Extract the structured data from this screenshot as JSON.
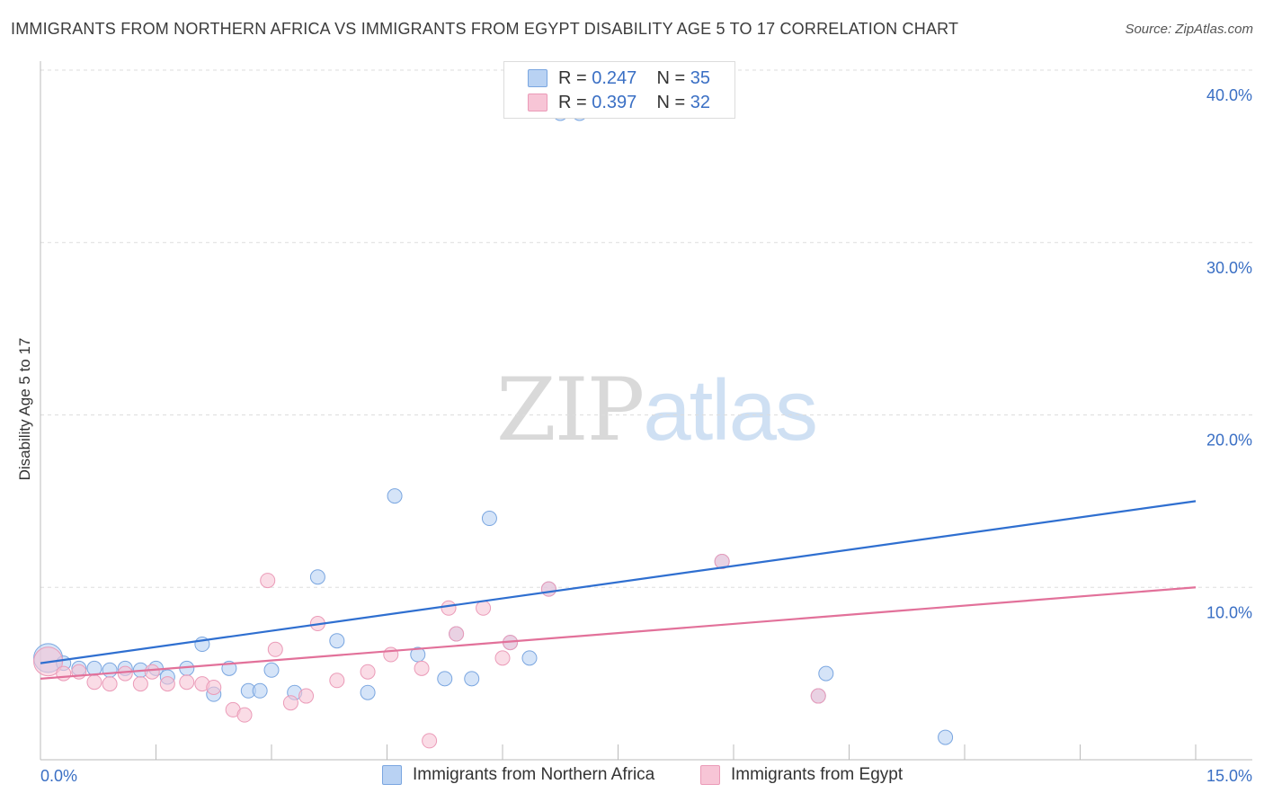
{
  "title": "IMMIGRANTS FROM NORTHERN AFRICA VS IMMIGRANTS FROM EGYPT DISABILITY AGE 5 TO 17 CORRELATION CHART",
  "source": "Source: ZipAtlas.com",
  "watermark": {
    "zip": "ZIP",
    "atlas": "atlas"
  },
  "legend": {
    "r_label": "R =",
    "n_label": "N =",
    "rows": [
      {
        "r": "0.247",
        "n": "35"
      },
      {
        "r": "0.397",
        "n": "32"
      }
    ]
  },
  "colors": {
    "blue_fill": "#b9d2f3",
    "blue_stroke": "#7aa6e0",
    "blue_line": "#2f6fd0",
    "pink_fill": "#f7c5d6",
    "pink_stroke": "#eb9bb8",
    "pink_line": "#e2719a",
    "grid": "#dddddd",
    "tick_text": "#3a6fc4"
  },
  "chart_data": {
    "type": "scatter",
    "title": "IMMIGRANTS FROM NORTHERN AFRICA VS IMMIGRANTS FROM EGYPT DISABILITY AGE 5 TO 17 CORRELATION CHART",
    "xlabel": "",
    "ylabel": "Disability Age 5 to 17",
    "xlim": [
      0,
      15
    ],
    "ylim": [
      0,
      40
    ],
    "x_tick_labels": [
      "0.0%",
      "15.0%"
    ],
    "y_ticks": [
      10,
      20,
      30,
      40
    ],
    "y_tick_labels": [
      "10.0%",
      "20.0%",
      "30.0%",
      "40.0%"
    ],
    "grid": true,
    "legend_position": "top-center",
    "series": [
      {
        "name": "Immigrants from Northern Africa",
        "color": "#b9d2f3",
        "r": 0.247,
        "n": 35,
        "trend": {
          "x": [
            0,
            15
          ],
          "y": [
            5.6,
            15.0
          ]
        },
        "points": [
          {
            "x": 0.1,
            "y": 5.9
          },
          {
            "x": 0.3,
            "y": 5.6
          },
          {
            "x": 0.5,
            "y": 5.3
          },
          {
            "x": 0.7,
            "y": 5.3
          },
          {
            "x": 0.9,
            "y": 5.2
          },
          {
            "x": 1.1,
            "y": 5.3
          },
          {
            "x": 1.3,
            "y": 5.2
          },
          {
            "x": 1.5,
            "y": 5.3
          },
          {
            "x": 1.65,
            "y": 4.8
          },
          {
            "x": 1.9,
            "y": 5.3
          },
          {
            "x": 2.1,
            "y": 6.7
          },
          {
            "x": 2.25,
            "y": 3.8
          },
          {
            "x": 2.45,
            "y": 5.3
          },
          {
            "x": 2.7,
            "y": 4.0
          },
          {
            "x": 2.85,
            "y": 4.0
          },
          {
            "x": 3.0,
            "y": 5.2
          },
          {
            "x": 3.3,
            "y": 3.9
          },
          {
            "x": 3.6,
            "y": 10.6
          },
          {
            "x": 3.85,
            "y": 6.9
          },
          {
            "x": 4.25,
            "y": 3.9
          },
          {
            "x": 4.6,
            "y": 15.3
          },
          {
            "x": 4.9,
            "y": 6.1
          },
          {
            "x": 5.25,
            "y": 4.7
          },
          {
            "x": 5.6,
            "y": 4.7
          },
          {
            "x": 5.83,
            "y": 14.0
          },
          {
            "x": 6.1,
            "y": 6.8
          },
          {
            "x": 6.35,
            "y": 5.9
          },
          {
            "x": 6.6,
            "y": 9.9
          },
          {
            "x": 6.75,
            "y": 37.5
          },
          {
            "x": 7.0,
            "y": 37.5
          },
          {
            "x": 8.85,
            "y": 11.5
          },
          {
            "x": 10.1,
            "y": 3.7
          },
          {
            "x": 10.2,
            "y": 5.0
          },
          {
            "x": 11.75,
            "y": 1.3
          },
          {
            "x": 5.4,
            "y": 7.3
          }
        ]
      },
      {
        "name": "Immigrants from Egypt",
        "color": "#f7c5d6",
        "r": 0.397,
        "n": 32,
        "trend": {
          "x": [
            0,
            15
          ],
          "y": [
            4.7,
            10.0
          ]
        },
        "points": [
          {
            "x": 0.1,
            "y": 5.7
          },
          {
            "x": 0.3,
            "y": 5.0
          },
          {
            "x": 0.5,
            "y": 5.1
          },
          {
            "x": 0.7,
            "y": 4.5
          },
          {
            "x": 0.9,
            "y": 4.4
          },
          {
            "x": 1.1,
            "y": 5.0
          },
          {
            "x": 1.3,
            "y": 4.4
          },
          {
            "x": 1.45,
            "y": 5.1
          },
          {
            "x": 1.65,
            "y": 4.4
          },
          {
            "x": 1.9,
            "y": 4.5
          },
          {
            "x": 2.1,
            "y": 4.4
          },
          {
            "x": 2.25,
            "y": 4.2
          },
          {
            "x": 2.5,
            "y": 2.9
          },
          {
            "x": 2.65,
            "y": 2.6
          },
          {
            "x": 2.95,
            "y": 10.4
          },
          {
            "x": 3.05,
            "y": 6.4
          },
          {
            "x": 3.25,
            "y": 3.3
          },
          {
            "x": 3.45,
            "y": 3.7
          },
          {
            "x": 3.6,
            "y": 7.9
          },
          {
            "x": 3.85,
            "y": 4.6
          },
          {
            "x": 4.25,
            "y": 5.1
          },
          {
            "x": 4.55,
            "y": 6.1
          },
          {
            "x": 4.95,
            "y": 5.3
          },
          {
            "x": 5.05,
            "y": 1.1
          },
          {
            "x": 5.3,
            "y": 8.8
          },
          {
            "x": 5.4,
            "y": 7.3
          },
          {
            "x": 5.75,
            "y": 8.8
          },
          {
            "x": 6.0,
            "y": 5.9
          },
          {
            "x": 6.1,
            "y": 6.8
          },
          {
            "x": 6.6,
            "y": 9.9
          },
          {
            "x": 8.85,
            "y": 11.5
          },
          {
            "x": 10.1,
            "y": 3.7
          }
        ]
      }
    ]
  }
}
